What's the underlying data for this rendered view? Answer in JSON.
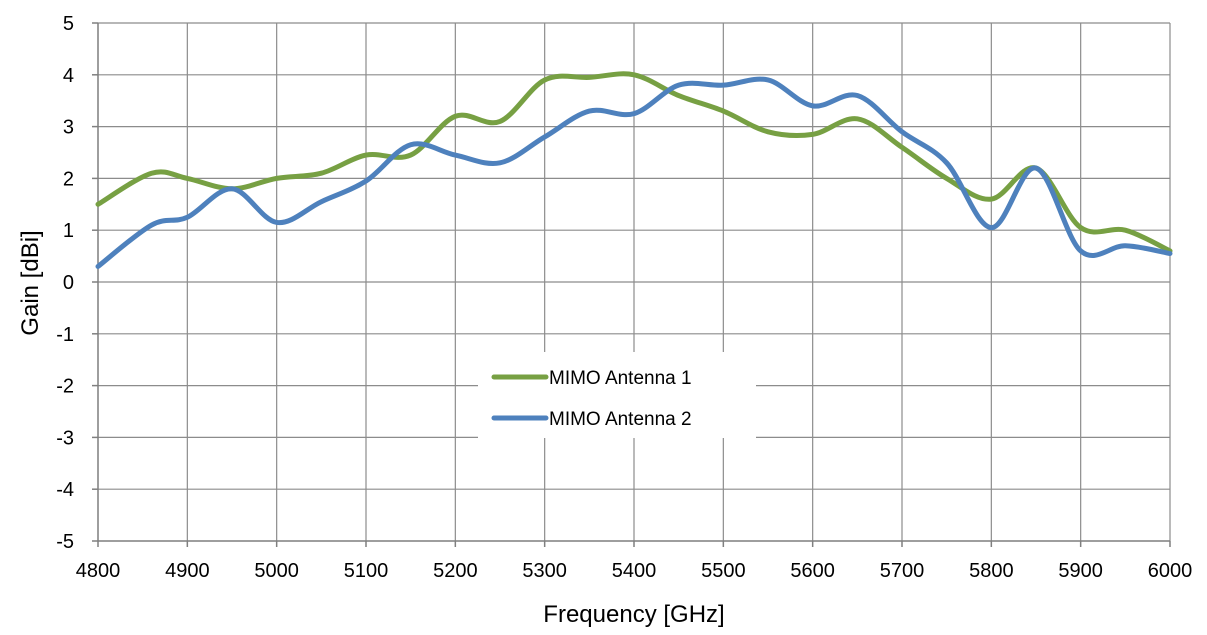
{
  "chart_data": {
    "type": "line",
    "xlabel": "Frequency [GHz]",
    "ylabel": "Gain [dBi]",
    "xlim": [
      4800,
      6000
    ],
    "ylim": [
      -5,
      5
    ],
    "x_ticks": [
      4800,
      4900,
      5000,
      5100,
      5200,
      5300,
      5400,
      5500,
      5600,
      5700,
      5800,
      5900,
      6000
    ],
    "y_ticks": [
      -5,
      -4,
      -3,
      -2,
      -1,
      0,
      1,
      2,
      3,
      4,
      5
    ],
    "grid": true,
    "legend_position": "center",
    "series": [
      {
        "name": "MIMO Antenna 1",
        "color": "#77a043",
        "x": [
          4800,
          4860,
          4900,
          4950,
          5000,
          5050,
          5100,
          5150,
          5200,
          5250,
          5300,
          5350,
          5400,
          5450,
          5500,
          5550,
          5600,
          5650,
          5700,
          5750,
          5800,
          5850,
          5900,
          5950,
          6000
        ],
        "y": [
          1.5,
          2.1,
          2.0,
          1.8,
          2.0,
          2.1,
          2.45,
          2.45,
          3.2,
          3.1,
          3.9,
          3.95,
          4.0,
          3.6,
          3.3,
          2.9,
          2.85,
          3.15,
          2.6,
          2.0,
          1.6,
          2.2,
          1.05,
          1.0,
          0.6
        ]
      },
      {
        "name": "MIMO Antenna 2",
        "color": "#4e81bd",
        "x": [
          4800,
          4860,
          4900,
          4950,
          5000,
          5050,
          5100,
          5150,
          5200,
          5250,
          5300,
          5350,
          5400,
          5450,
          5500,
          5550,
          5600,
          5650,
          5700,
          5750,
          5800,
          5850,
          5900,
          5950,
          6000
        ],
        "y": [
          0.3,
          1.1,
          1.25,
          1.8,
          1.15,
          1.55,
          1.95,
          2.65,
          2.45,
          2.3,
          2.8,
          3.3,
          3.25,
          3.8,
          3.8,
          3.9,
          3.4,
          3.6,
          2.9,
          2.3,
          1.05,
          2.2,
          0.6,
          0.7,
          0.55
        ]
      }
    ]
  }
}
